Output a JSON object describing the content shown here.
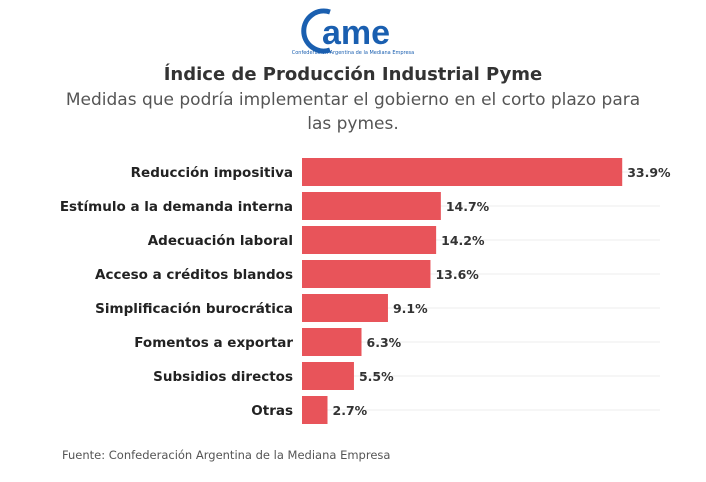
{
  "logo": {
    "text": "came",
    "subtitle": "Confederación Argentina de la Mediana Empresa",
    "color": "#1a5fb0"
  },
  "chart_data": {
    "type": "bar",
    "orientation": "horizontal",
    "title": "Índice de Producción Industrial Pyme",
    "subtitle": "Medidas que podría implementar el gobierno en el corto plazo para las pymes.",
    "categories": [
      "Reducción impositiva",
      "Estímulo a la demanda interna",
      "Adecuación laboral",
      "Acceso a créditos blandos",
      "Simplificación burocrática",
      "Fomentos a exportar",
      "Subsidios directos",
      "Otras"
    ],
    "values": [
      33.9,
      14.7,
      14.2,
      13.6,
      9.1,
      6.3,
      5.5,
      2.7
    ],
    "data_labels": [
      "33.9%",
      "14.7%",
      "14.2%",
      "13.6%",
      "9.1%",
      "6.3%",
      "5.5%",
      "2.7%"
    ],
    "unit": "%",
    "xlim": [
      0,
      37.9
    ],
    "grid": true,
    "bar_color": "#e8545a"
  },
  "source": "Fuente: Confederación Argentina de la Mediana Empresa"
}
